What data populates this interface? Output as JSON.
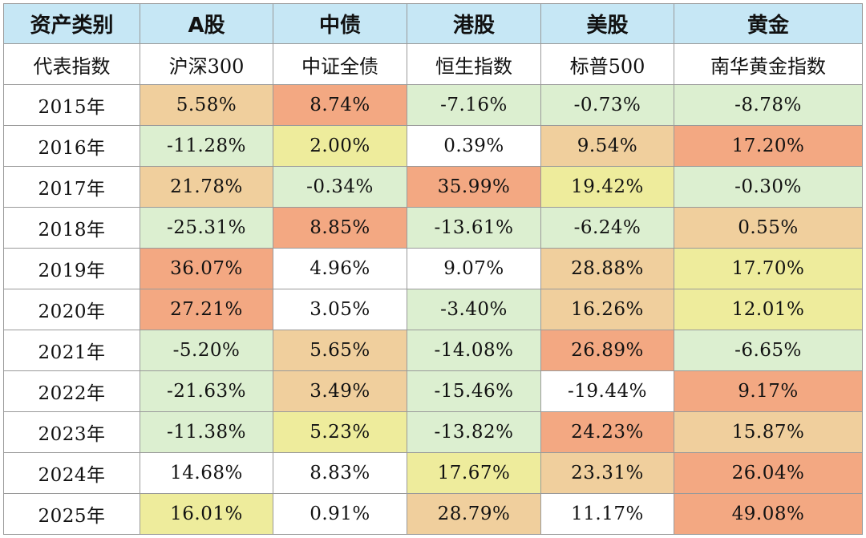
{
  "chart_data": {
    "type": "table",
    "colors": {
      "header_bg": "#c6e7f5",
      "red": "#f3a882",
      "orange": "#f0cf9d",
      "yellow": "#eeec9c",
      "green": "#dcefd0",
      "white": "#ffffff"
    },
    "header": {
      "label": "资产类别",
      "assets": [
        "A股",
        "中债",
        "港股",
        "美股",
        "黄金"
      ]
    },
    "index_row": {
      "label": "代表指数",
      "indices": [
        "沪深300",
        "中证全债",
        "恒生指数",
        "标普500",
        "南华黄金指数"
      ]
    },
    "rows": [
      {
        "year": "2015年",
        "values": [
          "5.58%",
          "8.74%",
          "-7.16%",
          "-0.73%",
          "-8.78%"
        ],
        "colors": [
          "orange",
          "red",
          "green",
          "green",
          "green"
        ]
      },
      {
        "year": "2016年",
        "values": [
          "-11.28%",
          "2.00%",
          "0.39%",
          "9.54%",
          "17.20%"
        ],
        "colors": [
          "green",
          "yellow",
          "white",
          "orange",
          "red"
        ]
      },
      {
        "year": "2017年",
        "values": [
          "21.78%",
          "-0.34%",
          "35.99%",
          "19.42%",
          "-0.30%"
        ],
        "colors": [
          "orange",
          "green",
          "red",
          "yellow",
          "green"
        ]
      },
      {
        "year": "2018年",
        "values": [
          "-25.31%",
          "8.85%",
          "-13.61%",
          "-6.24%",
          "0.55%"
        ],
        "colors": [
          "green",
          "red",
          "green",
          "green",
          "orange"
        ]
      },
      {
        "year": "2019年",
        "values": [
          "36.07%",
          "4.96%",
          "9.07%",
          "28.88%",
          "17.70%"
        ],
        "colors": [
          "red",
          "white",
          "white",
          "orange",
          "yellow"
        ]
      },
      {
        "year": "2020年",
        "values": [
          "27.21%",
          "3.05%",
          "-3.40%",
          "16.26%",
          "12.01%"
        ],
        "colors": [
          "red",
          "white",
          "green",
          "orange",
          "yellow"
        ]
      },
      {
        "year": "2021年",
        "values": [
          "-5.20%",
          "5.65%",
          "-14.08%",
          "26.89%",
          "-6.65%"
        ],
        "colors": [
          "green",
          "orange",
          "green",
          "red",
          "green"
        ]
      },
      {
        "year": "2022年",
        "values": [
          "-21.63%",
          "3.49%",
          "-15.46%",
          "-19.44%",
          "9.17%"
        ],
        "colors": [
          "green",
          "orange",
          "green",
          "white",
          "red"
        ]
      },
      {
        "year": "2023年",
        "values": [
          "-11.38%",
          "5.23%",
          "-13.82%",
          "24.23%",
          "15.87%"
        ],
        "colors": [
          "green",
          "yellow",
          "green",
          "red",
          "orange"
        ]
      },
      {
        "year": "2024年",
        "values": [
          "14.68%",
          "8.83%",
          "17.67%",
          "23.31%",
          "26.04%"
        ],
        "colors": [
          "white",
          "white",
          "yellow",
          "orange",
          "red"
        ]
      },
      {
        "year": "2025年",
        "values": [
          "16.01%",
          "0.91%",
          "28.79%",
          "11.17%",
          "49.08%"
        ],
        "colors": [
          "yellow",
          "white",
          "orange",
          "white",
          "red"
        ]
      }
    ]
  }
}
